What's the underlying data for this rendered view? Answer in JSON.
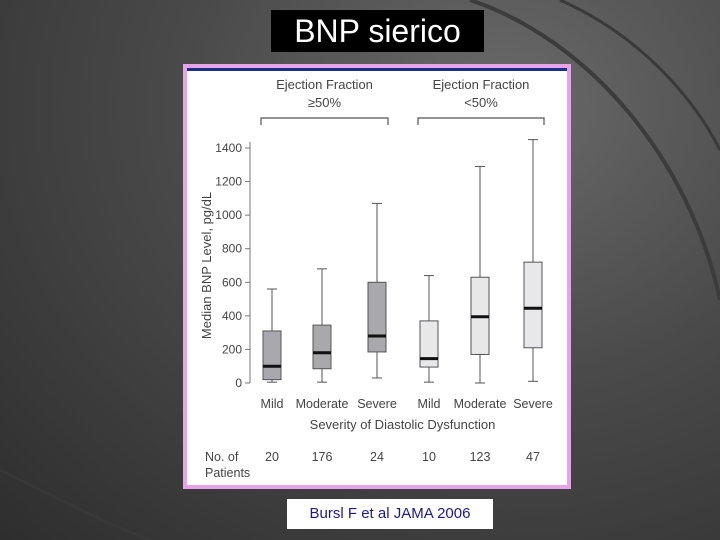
{
  "slide": {
    "title": "BNP sierico",
    "citation": "Bursl F et al JAMA 2006"
  },
  "chart_data": {
    "type": "boxplot",
    "ylabel": "Median BNP Level, pg/dL",
    "xlabel": "Severity of Diastolic Dysfunction",
    "ylim": [
      0,
      1500
    ],
    "yticks": [
      0,
      200,
      400,
      600,
      800,
      1000,
      1200,
      1400
    ],
    "groups": [
      {
        "label_line1": "Ejection Fraction",
        "label_line2": "≥50%"
      },
      {
        "label_line1": "Ejection Fraction",
        "label_line2": "<50%"
      }
    ],
    "patients_label_line1": "No. of",
    "patients_label_line2": "Patients",
    "boxes": [
      {
        "category": "Mild",
        "group": 0,
        "min": 5,
        "q1": 20,
        "median": 100,
        "q3": 310,
        "max": 560,
        "n": "20",
        "fill": "#a9a9ad"
      },
      {
        "category": "Moderate",
        "group": 0,
        "min": 5,
        "q1": 85,
        "median": 180,
        "q3": 345,
        "max": 680,
        "n": "176",
        "fill": "#a9a9ad"
      },
      {
        "category": "Severe",
        "group": 0,
        "min": 30,
        "q1": 185,
        "median": 280,
        "q3": 600,
        "max": 1070,
        "n": "24",
        "fill": "#a9a9ad"
      },
      {
        "category": "Mild",
        "group": 1,
        "min": 5,
        "q1": 95,
        "median": 145,
        "q3": 370,
        "max": 640,
        "n": "10",
        "fill": "#e8e8ea"
      },
      {
        "category": "Moderate",
        "group": 1,
        "min": 0,
        "q1": 170,
        "median": 395,
        "q3": 630,
        "max": 1290,
        "n": "123",
        "fill": "#e8e8ea"
      },
      {
        "category": "Severe",
        "group": 1,
        "min": 10,
        "q1": 210,
        "median": 445,
        "q3": 720,
        "max": 1450,
        "n": "47",
        "fill": "#e8e8ea"
      }
    ]
  }
}
